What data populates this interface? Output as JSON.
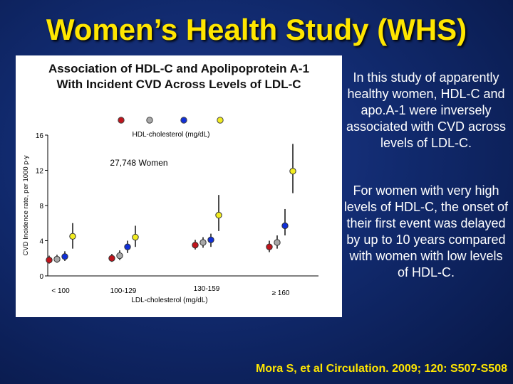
{
  "slide": {
    "title": "Women’s Health Study (WHS)",
    "paragraph1": "In this study of apparently healthy women, HDL-C and apo.A-1 were inversely associated with CVD across levels of LDL-C.",
    "paragraph2": "For women with very high levels of HDL-C, the onset of their first event was delayed by up to 10 years compared with women with low levels of HDL-C.",
    "citation": "Mora S, et al Circulation. 2009; 120: S507-S508"
  },
  "chart_data": {
    "type": "scatter",
    "title_line1": "Association of HDL-C and Apolipoprotein A-1",
    "title_line2": "With Incident CVD Across Levels of LDL-C",
    "ylabel": "CVD Incidence rate, per 1000 p-y",
    "xlabel": "LDL-cholesterol (mg/dL)",
    "legend_label": "HDL-cholesterol (mg/dL)",
    "annotation": "27,748 Women",
    "ylim": [
      0,
      16
    ],
    "yticks": [
      0,
      4,
      8,
      12,
      16
    ],
    "categories": [
      "< 100",
      "100-129",
      "130-159",
      "≥ 160"
    ],
    "series": [
      {
        "color": "#c0141c",
        "values": [
          1.8,
          2.0,
          3.5,
          3.3
        ],
        "ci_low": [
          1.4,
          1.6,
          3.0,
          2.7
        ],
        "ci_high": [
          2.3,
          2.5,
          4.1,
          4.0
        ]
      },
      {
        "color": "#a8a8a8",
        "values": [
          1.9,
          2.3,
          3.8,
          3.8
        ],
        "ci_low": [
          1.5,
          1.8,
          3.2,
          3.1
        ],
        "ci_high": [
          2.4,
          2.9,
          4.4,
          4.6
        ]
      },
      {
        "color": "#1030d8",
        "values": [
          2.2,
          3.3,
          4.1,
          5.7
        ],
        "ci_low": [
          1.7,
          2.6,
          3.3,
          4.6
        ],
        "ci_high": [
          2.8,
          4.0,
          4.8,
          7.6
        ]
      },
      {
        "color": "#f2ec20",
        "values": [
          4.5,
          4.4,
          6.9,
          11.9
        ],
        "ci_low": [
          3.1,
          3.3,
          5.1,
          9.4
        ],
        "ci_high": [
          6.0,
          5.7,
          9.2,
          15.0
        ]
      }
    ]
  }
}
